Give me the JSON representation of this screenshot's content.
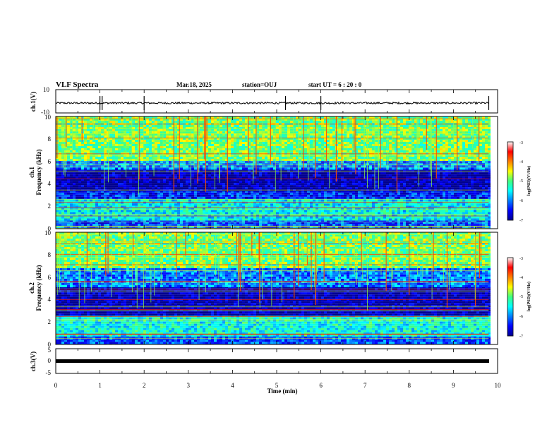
{
  "header": {
    "title": "VLF Spectra",
    "date": "Mar.18, 2025",
    "station": "station=OUJ",
    "start": "start  UT =   6 : 20 : 0"
  },
  "chart_data": [
    {
      "type": "line",
      "name": "ch1-waveform",
      "ylabel": "ch.1(V)",
      "ylim": [
        -10,
        10
      ],
      "ytick_labels": [
        "10",
        "-10"
      ],
      "xlim": [
        0,
        10
      ],
      "baseline": -1.5,
      "spikes_x": [
        1.0,
        1.05,
        2.0,
        5.2,
        6.0,
        9.8
      ]
    },
    {
      "type": "heatmap",
      "name": "ch1-spectrogram",
      "ylabel_channel": "ch.1",
      "ylabel": "Frequency  (kHz)",
      "xlim": [
        0,
        10
      ],
      "ylim": [
        0,
        10
      ],
      "ytick_labels": [
        "0",
        "2",
        "4",
        "6",
        "8",
        "10"
      ],
      "data_end_x": 9.8,
      "bands": [
        {
          "from": 0.0,
          "to": 0.8,
          "level": -6.2
        },
        {
          "from": 0.8,
          "to": 2.8,
          "level": -5.5
        },
        {
          "from": 2.8,
          "to": 3.4,
          "level": -6.4
        },
        {
          "from": 3.4,
          "to": 5.4,
          "level": -6.9
        },
        {
          "from": 5.4,
          "to": 6.2,
          "level": -6.0
        },
        {
          "from": 6.2,
          "to": 10.0,
          "level": -4.9
        }
      ],
      "colorbar": {
        "label": "log(PSD)(V²/Hz)",
        "range": [
          -7,
          -3
        ],
        "tick_labels": [
          "-3",
          "-4",
          "-5",
          "-6",
          "-7"
        ]
      }
    },
    {
      "type": "heatmap",
      "name": "ch2-spectrogram",
      "ylabel_channel": "ch.2",
      "ylabel": "Frequency  (kHz)",
      "xlim": [
        0,
        10
      ],
      "ylim": [
        0,
        10
      ],
      "ytick_labels": [
        "0",
        "2",
        "4",
        "6",
        "8",
        "10"
      ],
      "data_end_x": 9.8,
      "bands": [
        {
          "from": 0.0,
          "to": 0.8,
          "level": -6.2
        },
        {
          "from": 0.8,
          "to": 2.6,
          "level": -5.4
        },
        {
          "from": 2.6,
          "to": 5.2,
          "level": -6.9
        },
        {
          "from": 5.2,
          "to": 6.8,
          "level": -6.0
        },
        {
          "from": 6.8,
          "to": 10.0,
          "level": -4.9
        }
      ],
      "colorbar": {
        "label": "log(PSD)(V²/Hz)",
        "range": [
          -7,
          -3
        ],
        "tick_labels": [
          "-3",
          "-4",
          "-5",
          "-6",
          "-7"
        ]
      }
    },
    {
      "type": "line",
      "name": "ch3-waveform",
      "ylabel": "ch.3(V)",
      "ylim": [
        -5,
        5
      ],
      "ytick_labels": [
        "5",
        "0",
        "-5"
      ],
      "xlim": [
        0,
        10
      ],
      "baseline": 0
    }
  ],
  "xaxis": {
    "label": "Time  (min)",
    "range": [
      0,
      10
    ],
    "tick_labels": [
      "0",
      "1",
      "2",
      "3",
      "4",
      "5",
      "6",
      "7",
      "8",
      "9",
      "10"
    ]
  },
  "colors": {
    "jet_low": "#00008f",
    "jet_high": "#800000"
  }
}
